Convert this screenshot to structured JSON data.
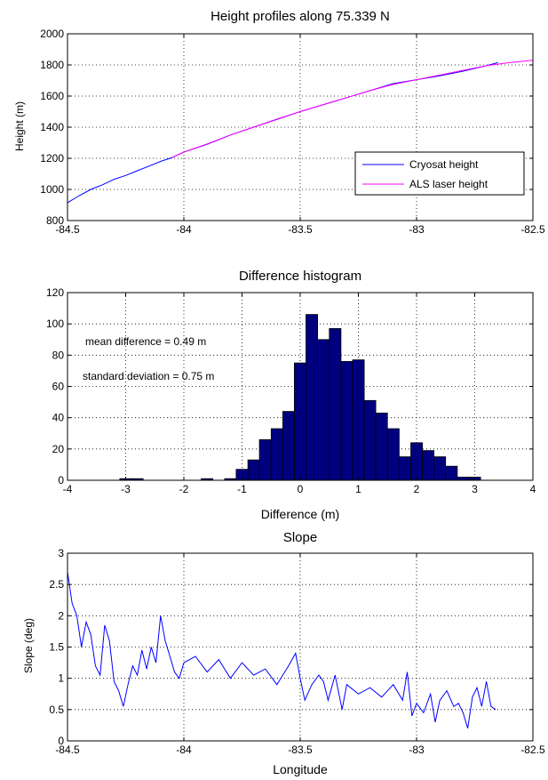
{
  "chart_data": [
    {
      "type": "line",
      "title": "Height profiles along 75.339 N",
      "xlabel": "",
      "ylabel": "Height (m)",
      "xlim": [
        -84.5,
        -82.5
      ],
      "ylim": [
        800,
        2000
      ],
      "xticks": [
        -84.5,
        -84,
        -83.5,
        -83,
        -82.5
      ],
      "yticks": [
        800,
        1000,
        1200,
        1400,
        1600,
        1800,
        2000
      ],
      "xtick_labels": [
        "-84.5",
        "-84",
        "-83.5",
        "-83",
        "-82.5"
      ],
      "ytick_labels": [
        "800",
        "1000",
        "1200",
        "1400",
        "1600",
        "1800",
        "2000"
      ],
      "grid": true,
      "legend": "bottom-right",
      "series": [
        {
          "name": "Cryosat height",
          "color": "#0000ff",
          "x": [
            -84.5,
            -84.45,
            -84.4,
            -84.35,
            -84.3,
            -84.25,
            -84.2,
            -84.15,
            -84.1,
            -84.05,
            -84.0,
            -83.9,
            -83.8,
            -83.7,
            -83.6,
            -83.5,
            -83.4,
            -83.3,
            -83.2,
            -83.1,
            -83.0,
            -82.9,
            -82.8,
            -82.7,
            -82.65
          ],
          "y": [
            915,
            960,
            1000,
            1030,
            1065,
            1090,
            1120,
            1150,
            1180,
            1205,
            1240,
            1290,
            1350,
            1400,
            1450,
            1500,
            1545,
            1590,
            1635,
            1680,
            1705,
            1730,
            1760,
            1795,
            1815
          ]
        },
        {
          "name": "ALS laser height",
          "color": "#ff00ff",
          "x": [
            -84.05,
            -84.0,
            -83.9,
            -83.8,
            -83.7,
            -83.6,
            -83.5,
            -83.4,
            -83.3,
            -83.2,
            -83.1,
            -83.0,
            -82.9,
            -82.8,
            -82.7,
            -82.6,
            -82.5
          ],
          "y": [
            1205,
            1240,
            1292,
            1350,
            1400,
            1452,
            1500,
            1545,
            1590,
            1635,
            1675,
            1705,
            1735,
            1765,
            1795,
            1815,
            1830
          ]
        }
      ]
    },
    {
      "type": "bar",
      "title": "Difference histogram",
      "xlabel": "Difference (m)",
      "ylabel": "",
      "xlim": [
        -4,
        4
      ],
      "ylim": [
        0,
        120
      ],
      "xticks": [
        -4,
        -3,
        -2,
        -1,
        0,
        1,
        2,
        3,
        4
      ],
      "yticks": [
        0,
        20,
        40,
        60,
        80,
        100,
        120
      ],
      "xtick_labels": [
        "-4",
        "-3",
        "-2",
        "-1",
        "0",
        "1",
        "2",
        "3",
        "4"
      ],
      "ytick_labels": [
        "0",
        "20",
        "40",
        "60",
        "80",
        "100",
        "120"
      ],
      "grid": true,
      "bin_width": 0.2,
      "bin_centers": [
        -3.0,
        -2.8,
        -1.6,
        -1.2,
        -1.0,
        -0.8,
        -0.6,
        -0.4,
        -0.2,
        0.0,
        0.2,
        0.4,
        0.6,
        0.8,
        1.0,
        1.2,
        1.4,
        1.6,
        1.8,
        2.0,
        2.2,
        2.4,
        2.6,
        2.8,
        3.0
      ],
      "values": [
        1,
        1,
        1,
        1,
        7,
        13,
        26,
        33,
        44,
        75,
        106,
        90,
        97,
        76,
        77,
        51,
        43,
        33,
        15,
        24,
        19,
        15,
        9,
        2,
        2
      ],
      "bar_color": "#00007f",
      "annotations": [
        "mean difference = 0.49 m",
        "standard deviation = 0.75 m"
      ]
    },
    {
      "type": "line",
      "title": "Slope",
      "xlabel": "Longitude",
      "ylabel": "Slope (deg)",
      "xlim": [
        -84.5,
        -82.5
      ],
      "ylim": [
        0,
        3
      ],
      "xticks": [
        -84.5,
        -84,
        -83.5,
        -83,
        -82.5
      ],
      "yticks": [
        0,
        0.5,
        1,
        1.5,
        2,
        2.5,
        3
      ],
      "xtick_labels": [
        "-84.5",
        "-84",
        "-83.5",
        "-83",
        "-82.5"
      ],
      "ytick_labels": [
        "0",
        "0.5",
        "1",
        "1.5",
        "2",
        "2.5",
        "3"
      ],
      "grid": true,
      "series": [
        {
          "color": "#0000ff",
          "x": [
            -84.5,
            -84.48,
            -84.46,
            -84.44,
            -84.42,
            -84.4,
            -84.38,
            -84.36,
            -84.34,
            -84.32,
            -84.3,
            -84.28,
            -84.26,
            -84.24,
            -84.22,
            -84.2,
            -84.18,
            -84.16,
            -84.14,
            -84.12,
            -84.1,
            -84.08,
            -84.06,
            -84.04,
            -84.02,
            -84.0,
            -83.95,
            -83.9,
            -83.85,
            -83.8,
            -83.75,
            -83.7,
            -83.65,
            -83.6,
            -83.55,
            -83.52,
            -83.5,
            -83.48,
            -83.45,
            -83.42,
            -83.4,
            -83.38,
            -83.35,
            -83.32,
            -83.3,
            -83.25,
            -83.2,
            -83.15,
            -83.1,
            -83.06,
            -83.04,
            -83.02,
            -83.0,
            -82.97,
            -82.94,
            -82.92,
            -82.9,
            -82.87,
            -82.84,
            -82.82,
            -82.8,
            -82.78,
            -82.76,
            -82.74,
            -82.72,
            -82.7,
            -82.68,
            -82.66
          ],
          "y": [
            2.7,
            2.2,
            2.0,
            1.5,
            1.9,
            1.7,
            1.2,
            1.05,
            1.85,
            1.6,
            0.95,
            0.8,
            0.55,
            0.9,
            1.2,
            1.05,
            1.45,
            1.15,
            1.5,
            1.25,
            2.0,
            1.6,
            1.35,
            1.1,
            1.0,
            1.25,
            1.35,
            1.1,
            1.3,
            1.0,
            1.25,
            1.05,
            1.15,
            0.9,
            1.2,
            1.4,
            1.0,
            0.65,
            0.9,
            1.05,
            0.95,
            0.65,
            1.05,
            0.5,
            0.9,
            0.75,
            0.85,
            0.7,
            0.9,
            0.65,
            1.1,
            0.4,
            0.6,
            0.45,
            0.75,
            0.3,
            0.65,
            0.8,
            0.55,
            0.6,
            0.45,
            0.2,
            0.7,
            0.85,
            0.55,
            0.95,
            0.55,
            0.5
          ]
        }
      ]
    }
  ]
}
